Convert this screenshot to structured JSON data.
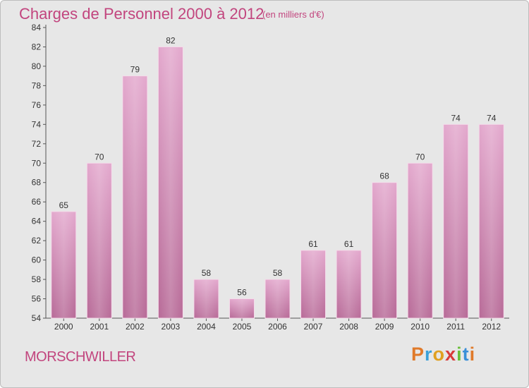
{
  "header": {
    "title": "Charges de Personnel 2000 à 2012",
    "subtitle": "(en milliers d'€)"
  },
  "footer": {
    "city": "MORSCHWILLER",
    "logo": "Proxiti",
    "logo_colors": [
      "#e07a2a",
      "#3aa0d8",
      "#e0a020",
      "#d83a3a",
      "#6abf3a",
      "#3a8fd8",
      "#e07a2a"
    ]
  },
  "colors": {
    "bar_top": "#e3a8cd",
    "bar_bottom": "#b86b98",
    "accent": "#c2457e",
    "background": "#e7e7e7"
  },
  "chart_data": {
    "type": "bar",
    "categories": [
      "2000",
      "2001",
      "2002",
      "2003",
      "2004",
      "2005",
      "2006",
      "2007",
      "2008",
      "2009",
      "2010",
      "2011",
      "2012"
    ],
    "values": [
      65,
      70,
      79,
      82,
      58,
      56,
      58,
      61,
      61,
      68,
      70,
      74,
      74
    ],
    "ylim": [
      54,
      84
    ],
    "yticks": [
      54,
      56,
      58,
      60,
      62,
      64,
      66,
      68,
      70,
      72,
      74,
      76,
      78,
      80,
      82,
      84
    ],
    "grid": false,
    "data_labels": true
  }
}
